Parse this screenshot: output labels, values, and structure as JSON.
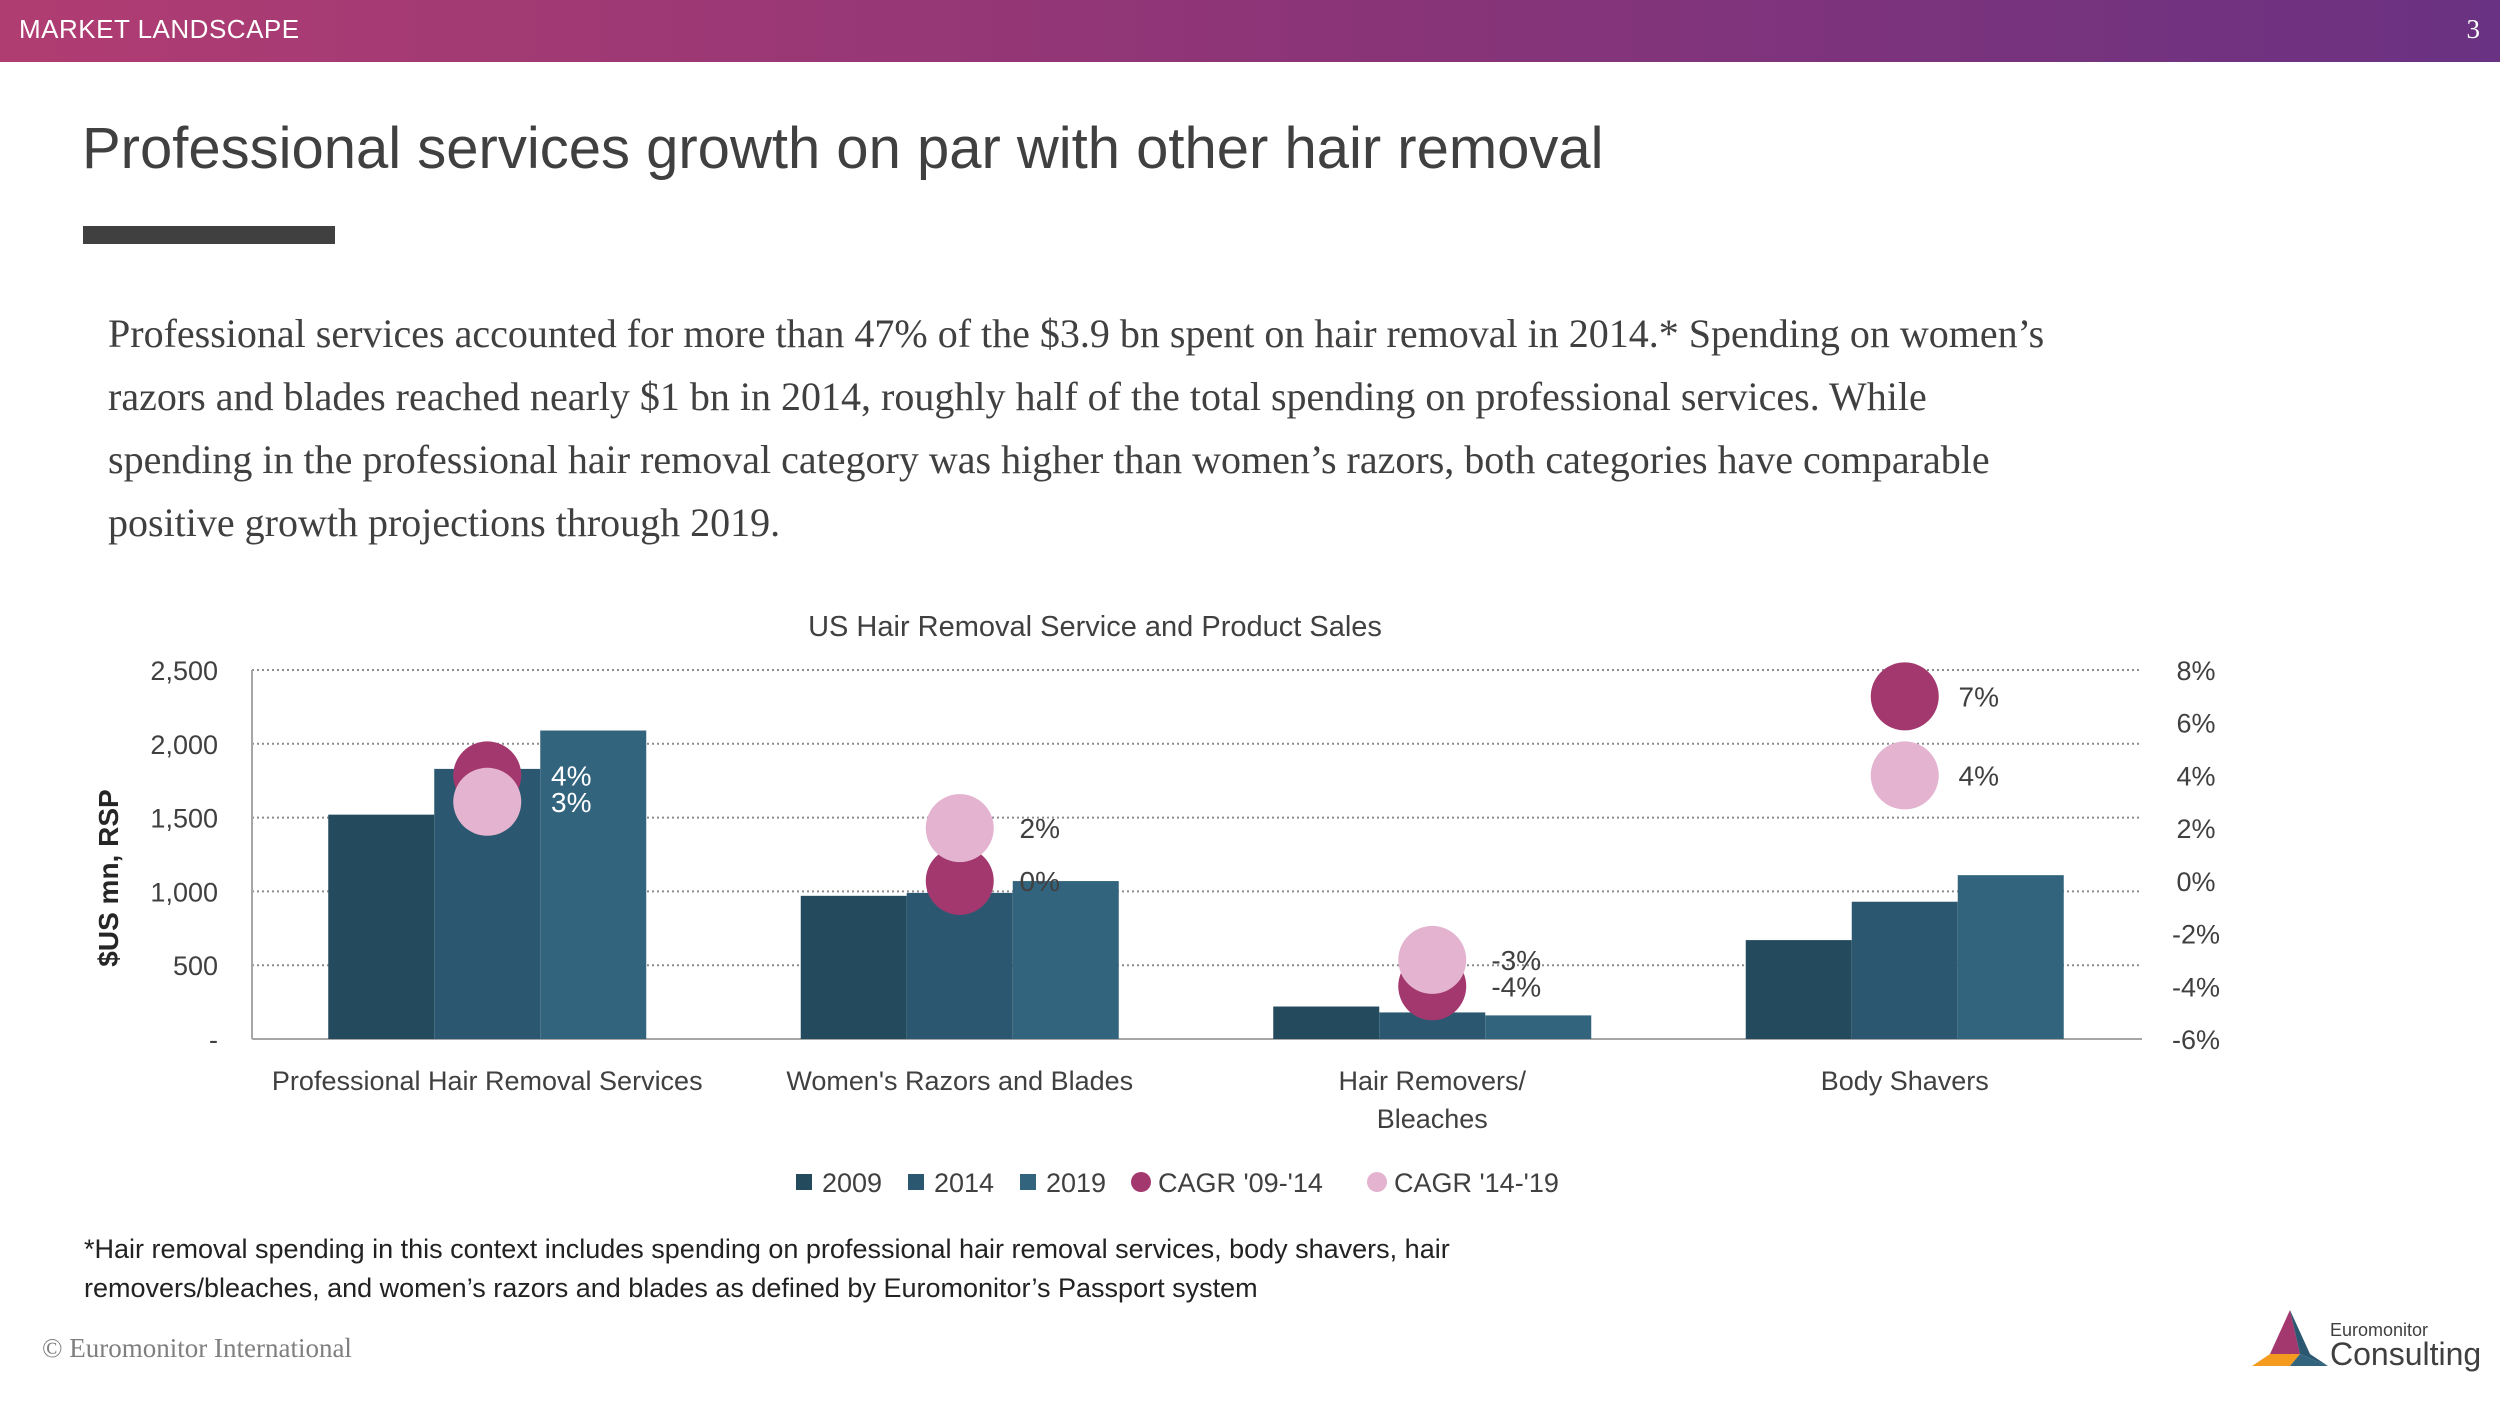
{
  "header": {
    "section": "MARKET LANDSCAPE",
    "page_number": "3"
  },
  "title": "Professional services growth on par with other hair removal",
  "intro": "Professional services accounted for more than 47% of the $3.9 bn spent on hair removal in 2014.* Spending on women’s razors and blades reached nearly $1 bn in 2014, roughly half of the total spending on professional services. While spending in the professional hair removal category was higher than women’s razors, both categories have comparable positive growth projections through 2019.",
  "footnote": "*Hair removal spending in this context includes spending on professional hair removal services, body shavers, hair removers/bleaches, and women’s razors and blades as defined by Euromonitor’s Passport system",
  "copyright": "© Euromonitor International",
  "logo": {
    "line1": "Euromonitor",
    "line2": "Consulting"
  },
  "chart_data": {
    "type": "bar",
    "title": "US Hair Removal Service and Product Sales",
    "ylabel": "$US mn, RSP",
    "ylabel_right": "",
    "ylim": [
      0,
      2500
    ],
    "y_ticks": [
      "-",
      "500",
      "1,000",
      "1,500",
      "2,000",
      "2,500"
    ],
    "y_tick_values": [
      0,
      500,
      1000,
      1500,
      2000,
      2500
    ],
    "ylim_right": [
      -6,
      8
    ],
    "y_right_ticks": [
      "-6%",
      "-4%",
      "-2%",
      "0%",
      "2%",
      "4%",
      "6%",
      "8%"
    ],
    "y_right_tick_values": [
      -6,
      -4,
      -2,
      0,
      2,
      4,
      6,
      8
    ],
    "grid": true,
    "legend_position": "bottom",
    "categories": [
      [
        "Professional Hair Removal Services"
      ],
      [
        "Women's Razors and Blades"
      ],
      [
        "Hair Removers/",
        "Bleaches"
      ],
      [
        "Body Shavers"
      ]
    ],
    "series": [
      {
        "name": "2009",
        "type": "bar",
        "color": "#244a5e",
        "values": [
          1520,
          970,
          220,
          670
        ]
      },
      {
        "name": "2014",
        "type": "bar",
        "color": "#2b5870",
        "values": [
          1830,
          990,
          180,
          930
        ]
      },
      {
        "name": "2019",
        "type": "bar",
        "color": "#33647e",
        "values": [
          2090,
          1070,
          160,
          1110
        ]
      },
      {
        "name": "CAGR '09-'14",
        "type": "scatter",
        "axis": "right",
        "color": "#a3386e",
        "values": [
          4,
          0,
          -4,
          7
        ],
        "labels": [
          "4%",
          "0%",
          "-4%",
          "7%"
        ]
      },
      {
        "name": "CAGR '14-'19",
        "type": "scatter",
        "axis": "right",
        "color": "#e3b3cf",
        "values": [
          3,
          2,
          -3,
          4
        ],
        "labels": [
          "3%",
          "2%",
          "-3%",
          "4%"
        ]
      }
    ]
  }
}
